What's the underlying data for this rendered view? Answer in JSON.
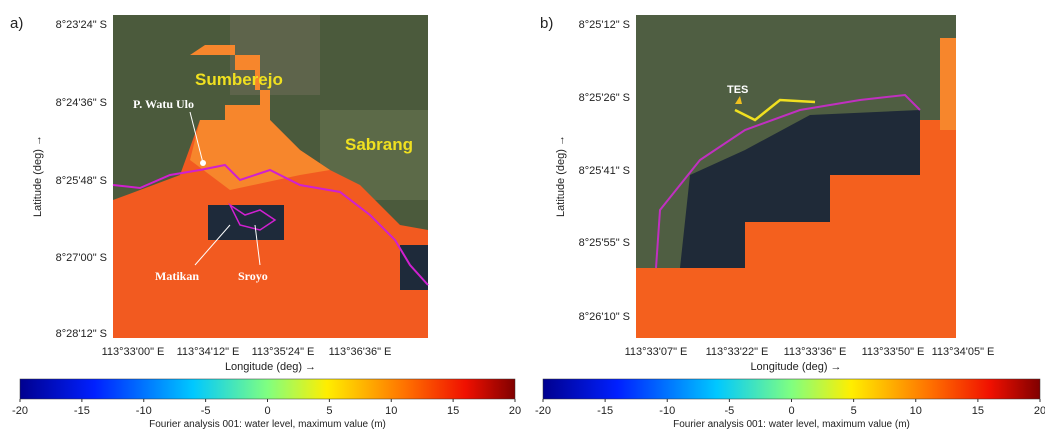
{
  "panels": [
    {
      "label": "a)",
      "yticks": [
        "8°23'24\" S",
        "8°24'36\" S",
        "8°25'48\" S",
        "8°27'00\" S",
        "8°28'12\" S"
      ],
      "xticks": [
        "113°33'00\" E",
        "113°34'12\" E",
        "113°35'24\" E",
        "113°36'36\" E"
      ],
      "xlabel": "Longitude (deg) →",
      "ylabel": "Latitude (deg) →",
      "places": [
        "Sumberejo",
        "Sabrang",
        "P. Watu Ulo",
        "Matikan",
        "Sroyo"
      ],
      "colorbar": {
        "clim": [
          -20,
          20
        ],
        "ticks": [
          -20,
          -15,
          -10,
          -5,
          0,
          5,
          10,
          15,
          20
        ],
        "label": "Fourier analysis 001: water level, maximum value (m)"
      }
    },
    {
      "label": "b)",
      "yticks": [
        "8°25'12\" S",
        "8°25'26\" S",
        "8°25'41\" S",
        "8°25'55\" S",
        "8°26'10\" S"
      ],
      "xticks": [
        "113°33'07\" E",
        "113°33'22\" E",
        "113°33'36\" E",
        "113°33'50\" E",
        "113°34'05\" E"
      ],
      "xlabel": "Longitude (deg) →",
      "ylabel": "Latitude (deg) →",
      "places": [
        "TES"
      ],
      "colorbar": {
        "clim": [
          -20,
          20
        ],
        "ticks": [
          -20,
          -15,
          -10,
          -5,
          0,
          5,
          10,
          15,
          20
        ],
        "label": "Fourier analysis 001: water level, maximum value (m)"
      }
    }
  ]
}
